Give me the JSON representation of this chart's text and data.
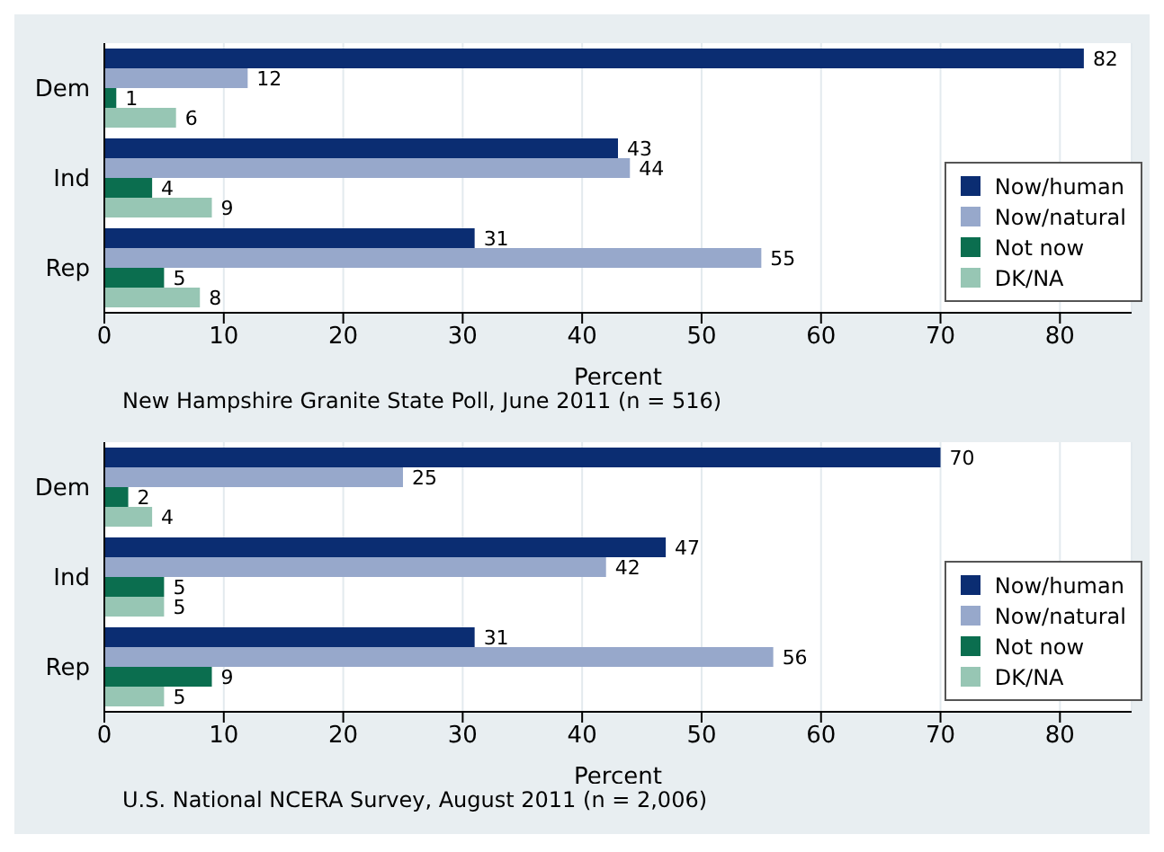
{
  "chart_data": [
    {
      "type": "bar",
      "orientation": "horizontal",
      "categories": [
        "Dem",
        "Ind",
        "Rep"
      ],
      "xlabel": "Percent",
      "xlim": [
        0,
        86
      ],
      "xticks": [
        0,
        10,
        20,
        30,
        40,
        50,
        60,
        70,
        80
      ],
      "grid": "x",
      "legend": "bottom right",
      "data_labels": true,
      "series": [
        {
          "name": "Now/human",
          "color": "#0b2d72",
          "values": [
            82,
            43,
            31
          ]
        },
        {
          "name": "Now/natural",
          "color": "#97a8cb",
          "values": [
            12,
            44,
            55
          ]
        },
        {
          "name": "Not now",
          "color": "#0b6e4f",
          "values": [
            1,
            4,
            5
          ]
        },
        {
          "name": "DK/NA",
          "color": "#97c6b4",
          "values": [
            6,
            9,
            8
          ]
        }
      ],
      "annotations": [
        "New Hampshire Granite State Poll, June 2011 (n = 516)"
      ]
    },
    {
      "type": "bar",
      "orientation": "horizontal",
      "categories": [
        "Dem",
        "Ind",
        "Rep"
      ],
      "xlabel": "Percent",
      "xlim": [
        0,
        86
      ],
      "xticks": [
        0,
        10,
        20,
        30,
        40,
        50,
        60,
        70,
        80
      ],
      "grid": "x",
      "legend": "bottom right",
      "data_labels": true,
      "series": [
        {
          "name": "Now/human",
          "color": "#0b2d72",
          "values": [
            70,
            47,
            31
          ]
        },
        {
          "name": "Now/natural",
          "color": "#97a8cb",
          "values": [
            25,
            42,
            56
          ]
        },
        {
          "name": "Not now",
          "color": "#0b6e4f",
          "values": [
            2,
            5,
            9
          ]
        },
        {
          "name": "DK/NA",
          "color": "#97c6b4",
          "values": [
            4,
            5,
            5
          ]
        }
      ],
      "annotations": [
        "U.S. National NCERA Survey, August 2011 (n = 2,006)"
      ]
    }
  ]
}
